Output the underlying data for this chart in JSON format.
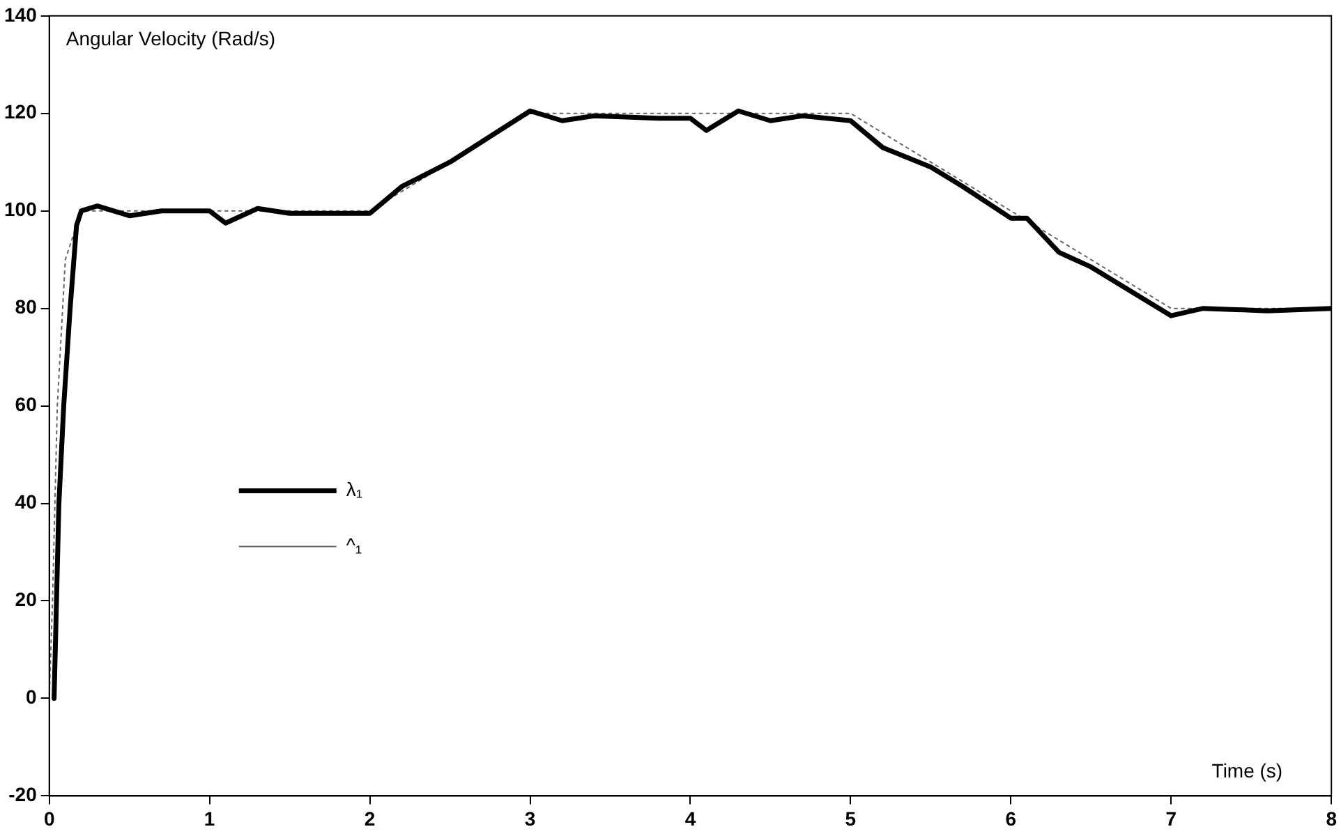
{
  "chart_data": {
    "type": "line",
    "title": "Angular Velocity (Rad/s)",
    "xlabel": "Time (s)",
    "xlim": [
      0,
      8
    ],
    "xticks": [
      0,
      1,
      2,
      3,
      4,
      5,
      6,
      7,
      8
    ],
    "ylim": [
      -20,
      140
    ],
    "yticks": [
      -20,
      0,
      20,
      40,
      60,
      80,
      100,
      120,
      140
    ],
    "grid": false,
    "legend": "left",
    "marker": "none",
    "series": [
      {
        "name": "λ₁",
        "color": "#000000",
        "line_style": "solid",
        "x": [
          0.03,
          0.06,
          0.09,
          0.13,
          0.17,
          0.2,
          0.3,
          0.5,
          0.7,
          1.0,
          1.1,
          1.3,
          1.5,
          2.0,
          2.2,
          2.5,
          3.0,
          3.2,
          3.4,
          3.8,
          4.0,
          4.1,
          4.3,
          4.5,
          4.7,
          5.0,
          5.2,
          5.5,
          5.7,
          6.0,
          6.1,
          6.3,
          6.5,
          7.0,
          7.2,
          7.6,
          8.0
        ],
        "values": [
          0,
          40,
          60,
          80,
          97,
          100,
          101,
          99,
          100,
          100,
          97.5,
          100.5,
          99.5,
          99.5,
          105,
          110,
          120.5,
          118.5,
          119.5,
          119,
          119,
          116.5,
          120.5,
          118.5,
          119.5,
          118.5,
          113,
          109,
          105,
          98.5,
          98.5,
          91.5,
          88.5,
          78.5,
          80,
          79.5,
          80
        ]
      },
      {
        "name": "^₁",
        "color": "#666666",
        "line_style": "dotted",
        "x": [
          0,
          0.02,
          0.05,
          0.1,
          0.2,
          2,
          3,
          5,
          7,
          8
        ],
        "values": [
          0,
          20,
          60,
          90,
          100,
          100,
          120,
          120,
          80,
          80
        ]
      }
    ]
  }
}
